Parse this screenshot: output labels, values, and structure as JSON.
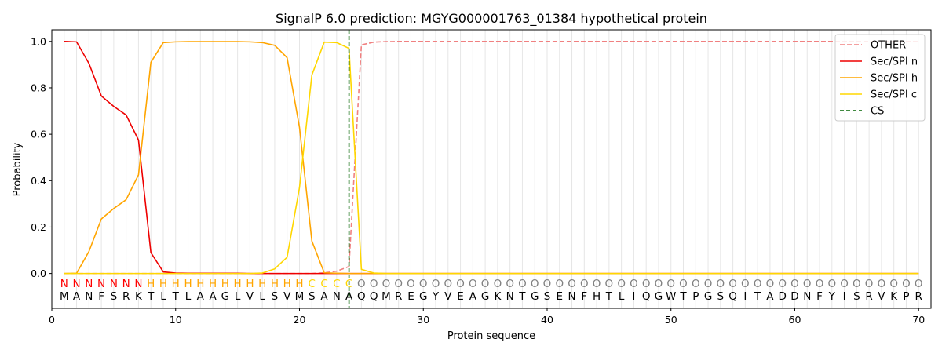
{
  "chart_data": {
    "type": "line",
    "title": "SignalP 6.0 prediction: MGYG000001763_01384 hypothetical protein",
    "xlabel": "Protein sequence",
    "ylabel": "Probability",
    "xlim": [
      0,
      71
    ],
    "ylim": [
      -0.15,
      1.05
    ],
    "xticks": [
      0,
      10,
      20,
      30,
      40,
      50,
      60,
      70
    ],
    "yticks": [
      0.0,
      0.2,
      0.4,
      0.6,
      0.8,
      1.0
    ],
    "ytick_labels": [
      "0.0",
      "0.2",
      "0.4",
      "0.6",
      "0.8",
      "1.0"
    ],
    "grid": "vertical lines at each residue",
    "legend_position": "top-right",
    "sequence": "MANFSRKTLTLAAGLVLSVMSANAQQMREGYVEAGKNTGSENFHTLIQGWTPGSQITADDNFYISRVKPR",
    "labels": "NNNNNNNHHHHHHHHHHHHHCCCCOOOOOOOOOOOOOOOOOOOOOOOOOOOOOOOOOOOOOOOOOOOOOO",
    "label_colors": {
      "N": "#ff0000",
      "H": "#ffa500",
      "C": "#ffd700",
      "O": "#808080"
    },
    "cleavage_site": 24,
    "series": [
      {
        "name": "OTHER",
        "color": "#f08080",
        "dash": true,
        "values": [
          0,
          0,
          0,
          0,
          0,
          0,
          0,
          0,
          0,
          0,
          0,
          0,
          0,
          0,
          0,
          0,
          0,
          0,
          0,
          0,
          0,
          0.003,
          0.01,
          0.03,
          0.985,
          0.997,
          0.999,
          1,
          1,
          1,
          1,
          1,
          1,
          1,
          1,
          1,
          1,
          1,
          1,
          1,
          1,
          1,
          1,
          1,
          1,
          1,
          1,
          1,
          1,
          1,
          1,
          1,
          1,
          1,
          1,
          1,
          1,
          1,
          1,
          1,
          1,
          1,
          1,
          1,
          1,
          1,
          1,
          1,
          1,
          1
        ]
      },
      {
        "name": "Sec/SPI n",
        "color": "#ee0000",
        "dash": false,
        "values": [
          1.0,
          0.998,
          0.905,
          0.765,
          0.72,
          0.683,
          0.575,
          0.09,
          0.007,
          0.002,
          0.001,
          0.001,
          0.001,
          0.001,
          0.001,
          0,
          0,
          0,
          0,
          0,
          0,
          0,
          0,
          0,
          0,
          0,
          0,
          0,
          0,
          0,
          0,
          0,
          0,
          0,
          0,
          0,
          0,
          0,
          0,
          0,
          0,
          0,
          0,
          0,
          0,
          0,
          0,
          0,
          0,
          0,
          0,
          0,
          0,
          0,
          0,
          0,
          0,
          0,
          0,
          0,
          0,
          0,
          0,
          0,
          0,
          0,
          0,
          0,
          0,
          0
        ]
      },
      {
        "name": "Sec/SPI h",
        "color": "#ffa500",
        "dash": false,
        "values": [
          0,
          0.001,
          0.095,
          0.235,
          0.28,
          0.318,
          0.425,
          0.91,
          0.995,
          0.998,
          0.999,
          0.999,
          0.999,
          0.999,
          0.999,
          0.998,
          0.995,
          0.983,
          0.93,
          0.63,
          0.14,
          0.003,
          0.001,
          0,
          0,
          0,
          0,
          0,
          0,
          0,
          0,
          0,
          0,
          0,
          0,
          0,
          0,
          0,
          0,
          0,
          0,
          0,
          0,
          0,
          0,
          0,
          0,
          0,
          0,
          0,
          0,
          0,
          0,
          0,
          0,
          0,
          0,
          0,
          0,
          0,
          0,
          0,
          0,
          0,
          0,
          0,
          0,
          0,
          0,
          0
        ]
      },
      {
        "name": "Sec/SPI c",
        "color": "#ffd700",
        "dash": false,
        "values": [
          0,
          0,
          0,
          0,
          0,
          0,
          0,
          0,
          0,
          0,
          0,
          0,
          0,
          0,
          0,
          0,
          0.002,
          0.02,
          0.07,
          0.37,
          0.855,
          0.997,
          0.995,
          0.97,
          0.018,
          0.002,
          0,
          0,
          0,
          0,
          0,
          0,
          0,
          0,
          0,
          0,
          0,
          0,
          0,
          0,
          0,
          0,
          0,
          0,
          0,
          0,
          0,
          0,
          0,
          0,
          0,
          0,
          0,
          0,
          0,
          0,
          0,
          0,
          0,
          0,
          0,
          0,
          0,
          0,
          0,
          0,
          0,
          0,
          0,
          0
        ]
      }
    ],
    "cs_legend": {
      "name": "CS",
      "color": "#006400"
    }
  }
}
